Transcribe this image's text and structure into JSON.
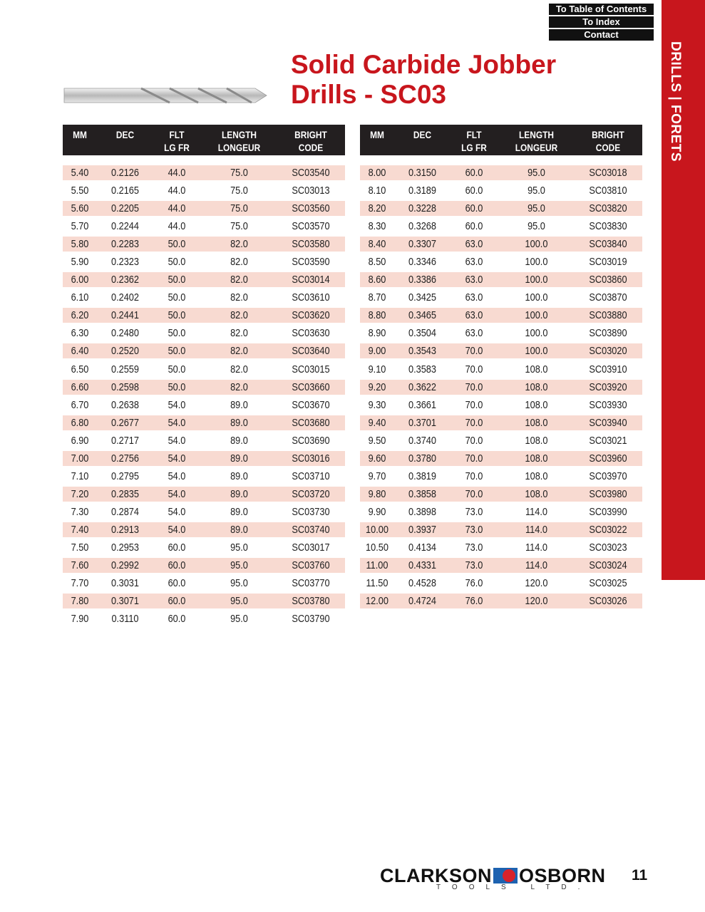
{
  "nav": {
    "toc": "To Table of Contents",
    "index": "To Index",
    "contact": "Contact"
  },
  "sidebar": {
    "label": "DRILLS | FORETS"
  },
  "title": {
    "line1": "Solid Carbide Jobber",
    "line2": "Drills - SC03"
  },
  "columns": [
    [
      "MM",
      ""
    ],
    [
      "DEC",
      ""
    ],
    [
      "FLT",
      "LG FR"
    ],
    [
      "LENGTH",
      "LONGEUR"
    ],
    [
      "BRIGHT",
      "CODE"
    ]
  ],
  "tables": [
    {
      "rows": [
        [
          "5.40",
          "0.2126",
          "44.0",
          "75.0",
          "SC03540"
        ],
        [
          "5.50",
          "0.2165",
          "44.0",
          "75.0",
          "SC03013"
        ],
        [
          "5.60",
          "0.2205",
          "44.0",
          "75.0",
          "SC03560"
        ],
        [
          "5.70",
          "0.2244",
          "44.0",
          "75.0",
          "SC03570"
        ],
        [
          "5.80",
          "0.2283",
          "50.0",
          "82.0",
          "SC03580"
        ],
        [
          "5.90",
          "0.2323",
          "50.0",
          "82.0",
          "SC03590"
        ],
        [
          "6.00",
          "0.2362",
          "50.0",
          "82.0",
          "SC03014"
        ],
        [
          "6.10",
          "0.2402",
          "50.0",
          "82.0",
          "SC03610"
        ],
        [
          "6.20",
          "0.2441",
          "50.0",
          "82.0",
          "SC03620"
        ],
        [
          "6.30",
          "0.2480",
          "50.0",
          "82.0",
          "SC03630"
        ],
        [
          "6.40",
          "0.2520",
          "50.0",
          "82.0",
          "SC03640"
        ],
        [
          "6.50",
          "0.2559",
          "50.0",
          "82.0",
          "SC03015"
        ],
        [
          "6.60",
          "0.2598",
          "50.0",
          "82.0",
          "SC03660"
        ],
        [
          "6.70",
          "0.2638",
          "54.0",
          "89.0",
          "SC03670"
        ],
        [
          "6.80",
          "0.2677",
          "54.0",
          "89.0",
          "SC03680"
        ],
        [
          "6.90",
          "0.2717",
          "54.0",
          "89.0",
          "SC03690"
        ],
        [
          "7.00",
          "0.2756",
          "54.0",
          "89.0",
          "SC03016"
        ],
        [
          "7.10",
          "0.2795",
          "54.0",
          "89.0",
          "SC03710"
        ],
        [
          "7.20",
          "0.2835",
          "54.0",
          "89.0",
          "SC03720"
        ],
        [
          "7.30",
          "0.2874",
          "54.0",
          "89.0",
          "SC03730"
        ],
        [
          "7.40",
          "0.2913",
          "54.0",
          "89.0",
          "SC03740"
        ],
        [
          "7.50",
          "0.2953",
          "60.0",
          "95.0",
          "SC03017"
        ],
        [
          "7.60",
          "0.2992",
          "60.0",
          "95.0",
          "SC03760"
        ],
        [
          "7.70",
          "0.3031",
          "60.0",
          "95.0",
          "SC03770"
        ],
        [
          "7.80",
          "0.3071",
          "60.0",
          "95.0",
          "SC03780"
        ],
        [
          "7.90",
          "0.3110",
          "60.0",
          "95.0",
          "SC03790"
        ]
      ]
    },
    {
      "rows": [
        [
          "8.00",
          "0.3150",
          "60.0",
          "95.0",
          "SC03018"
        ],
        [
          "8.10",
          "0.3189",
          "60.0",
          "95.0",
          "SC03810"
        ],
        [
          "8.20",
          "0.3228",
          "60.0",
          "95.0",
          "SC03820"
        ],
        [
          "8.30",
          "0.3268",
          "60.0",
          "95.0",
          "SC03830"
        ],
        [
          "8.40",
          "0.3307",
          "63.0",
          "100.0",
          "SC03840"
        ],
        [
          "8.50",
          "0.3346",
          "63.0",
          "100.0",
          "SC03019"
        ],
        [
          "8.60",
          "0.3386",
          "63.0",
          "100.0",
          "SC03860"
        ],
        [
          "8.70",
          "0.3425",
          "63.0",
          "100.0",
          "SC03870"
        ],
        [
          "8.80",
          "0.3465",
          "63.0",
          "100.0",
          "SC03880"
        ],
        [
          "8.90",
          "0.3504",
          "63.0",
          "100.0",
          "SC03890"
        ],
        [
          "9.00",
          "0.3543",
          "70.0",
          "100.0",
          "SC03020"
        ],
        [
          "9.10",
          "0.3583",
          "70.0",
          "108.0",
          "SC03910"
        ],
        [
          "9.20",
          "0.3622",
          "70.0",
          "108.0",
          "SC03920"
        ],
        [
          "9.30",
          "0.3661",
          "70.0",
          "108.0",
          "SC03930"
        ],
        [
          "9.40",
          "0.3701",
          "70.0",
          "108.0",
          "SC03940"
        ],
        [
          "9.50",
          "0.3740",
          "70.0",
          "108.0",
          "SC03021"
        ],
        [
          "9.60",
          "0.3780",
          "70.0",
          "108.0",
          "SC03960"
        ],
        [
          "9.70",
          "0.3819",
          "70.0",
          "108.0",
          "SC03970"
        ],
        [
          "9.80",
          "0.3858",
          "70.0",
          "108.0",
          "SC03980"
        ],
        [
          "9.90",
          "0.3898",
          "73.0",
          "114.0",
          "SC03990"
        ],
        [
          "10.00",
          "0.3937",
          "73.0",
          "114.0",
          "SC03022"
        ],
        [
          "10.50",
          "0.4134",
          "73.0",
          "114.0",
          "SC03023"
        ],
        [
          "11.00",
          "0.4331",
          "73.0",
          "114.0",
          "SC03024"
        ],
        [
          "11.50",
          "0.4528",
          "76.0",
          "120.0",
          "SC03025"
        ],
        [
          "12.00",
          "0.4724",
          "76.0",
          "120.0",
          "SC03026"
        ]
      ]
    }
  ],
  "footer": {
    "brand_left": "CLARKSON",
    "brand_right": "OSBORN",
    "tagline": "TOOLS LTD.",
    "page": "11"
  },
  "colors": {
    "accent": "#c8161d",
    "header_bg": "#231f20",
    "stripe": "#f8dad1"
  }
}
